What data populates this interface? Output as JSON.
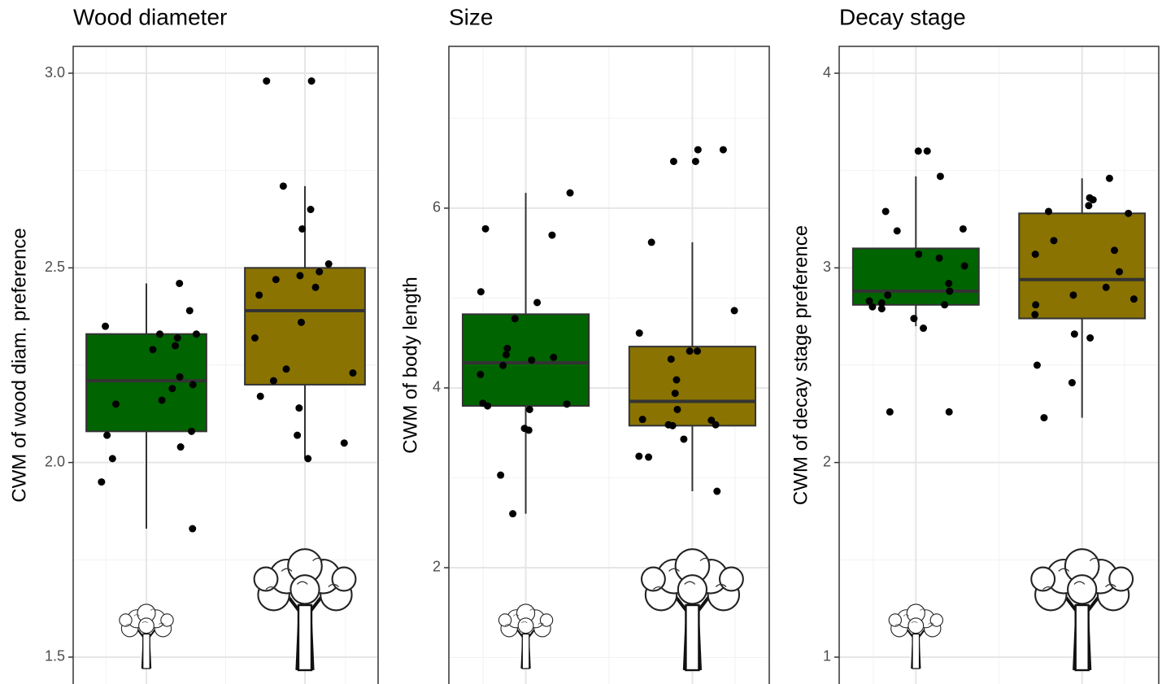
{
  "chart_data": [
    {
      "type": "box",
      "title": "Wood diameter",
      "y_label": "CWM of wood diam. preference",
      "ylim": [
        1.431,
        3.069
      ],
      "yticks": [
        {
          "value": 1.5,
          "label": "1.5"
        },
        {
          "value": 2,
          "label": "2.0"
        },
        {
          "value": 2.5,
          "label": "2.5"
        },
        {
          "value": 3,
          "label": "3.0"
        }
      ],
      "grid": true,
      "boxes": [
        {
          "color": "#006400",
          "whisker_low": 1.83,
          "q1": 2.08,
          "median": 2.21,
          "q3": 2.33,
          "whisker_high": 2.46,
          "points": [
            2.46,
            2.35,
            2.32,
            2.33,
            2.3,
            2.29,
            2.33,
            2.39,
            2.22,
            2.2,
            2.19,
            2.16,
            2.15,
            2.08,
            2.07,
            2.04,
            2.01,
            1.95,
            1.83
          ]
        },
        {
          "color": "#8a7300",
          "whisker_low": 2.01,
          "q1": 2.2,
          "median": 2.39,
          "q3": 2.5,
          "whisker_high": 2.71,
          "points": [
            2.98,
            2.98,
            2.71,
            2.65,
            2.6,
            2.51,
            2.49,
            2.48,
            2.47,
            2.45,
            2.43,
            2.36,
            2.32,
            2.24,
            2.23,
            2.21,
            2.17,
            2.14,
            2.07,
            2.05,
            2.01
          ]
        }
      ]
    },
    {
      "type": "box",
      "title": "Size",
      "y_label": "CWM of body length",
      "ylim": [
        0.706,
        7.8
      ],
      "yticks": [
        2,
        4,
        6
      ],
      "grid": true,
      "boxes": [
        {
          "color": "#006400",
          "whisker_low": 2.6,
          "q1": 3.8,
          "median": 4.28,
          "q3": 4.82,
          "whisker_high": 6.17,
          "points": [
            6.17,
            5.77,
            5.7,
            5.07,
            4.95,
            4.77,
            4.44,
            4.37,
            4.34,
            4.31,
            4.25,
            4.15,
            3.83,
            3.82,
            3.8,
            3.76,
            3.55,
            3.53,
            3.03,
            2.6
          ]
        },
        {
          "color": "#8a7300",
          "whisker_low": 2.85,
          "q1": 3.58,
          "median": 3.85,
          "q3": 4.46,
          "whisker_high": 5.62,
          "points": [
            6.65,
            6.65,
            6.52,
            6.52,
            5.62,
            4.86,
            4.61,
            4.41,
            4.41,
            4.32,
            4.09,
            3.94,
            3.76,
            3.65,
            3.64,
            3.59,
            3.58,
            3.59,
            3.43,
            3.24,
            3.23,
            2.85
          ]
        }
      ]
    },
    {
      "type": "box",
      "title": "Decay stage",
      "y_label": "CWM of decay stage preference",
      "ylim": [
        0.862,
        4.138
      ],
      "yticks": [
        1,
        2,
        3,
        4
      ],
      "grid": true,
      "boxes": [
        {
          "color": "#006400",
          "whisker_low": 2.7,
          "q1": 2.81,
          "median": 2.88,
          "q3": 3.1,
          "whisker_high": 3.47,
          "points": [
            3.6,
            3.6,
            3.47,
            3.29,
            3.2,
            3.19,
            3.07,
            3.05,
            3.01,
            2.92,
            2.88,
            2.86,
            2.83,
            2.82,
            2.81,
            2.8,
            2.79,
            2.74,
            2.69,
            2.26,
            2.26
          ]
        },
        {
          "color": "#8a7300",
          "whisker_low": 2.23,
          "q1": 2.74,
          "median": 2.94,
          "q3": 3.28,
          "whisker_high": 3.46,
          "points": [
            3.46,
            3.36,
            3.35,
            3.32,
            3.29,
            3.28,
            3.14,
            3.09,
            3.07,
            2.98,
            2.9,
            2.86,
            2.84,
            2.81,
            2.76,
            2.66,
            2.64,
            2.5,
            2.41,
            2.23
          ]
        }
      ]
    }
  ]
}
